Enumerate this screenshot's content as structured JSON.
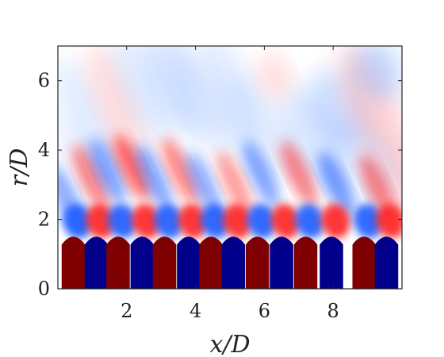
{
  "chart_data": {
    "type": "heatmap",
    "title": "",
    "xlabel": "x/D",
    "ylabel": "r/D",
    "xlim": [
      0,
      10
    ],
    "ylim": [
      0,
      7
    ],
    "xticks": [
      2,
      4,
      6,
      8
    ],
    "yticks": [
      0,
      2,
      4,
      6
    ],
    "xtick_labels": [
      "2",
      "4",
      "6",
      "8"
    ],
    "ytick_labels": [
      "0",
      "2",
      "4",
      "6"
    ],
    "colormap": [
      "#00008b",
      "#1f5cff",
      "#8fb6ff",
      "#ffffff",
      "#ff9a9a",
      "#ff2020",
      "#7f0000"
    ],
    "legend": false,
    "grid": false,
    "field_description_series": [
      {
        "name": "core_band_centers_x",
        "values": [
          0.45,
          1.12,
          1.75,
          2.45,
          3.1,
          3.8,
          4.45,
          5.1,
          5.8,
          6.5,
          7.2,
          7.95,
          8.9,
          9.55
        ]
      },
      {
        "name": "core_band_signs",
        "values": [
          1,
          -1,
          1,
          -1,
          1,
          -1,
          1,
          -1,
          1,
          -1,
          1,
          -1,
          1,
          -1
        ]
      }
    ]
  }
}
